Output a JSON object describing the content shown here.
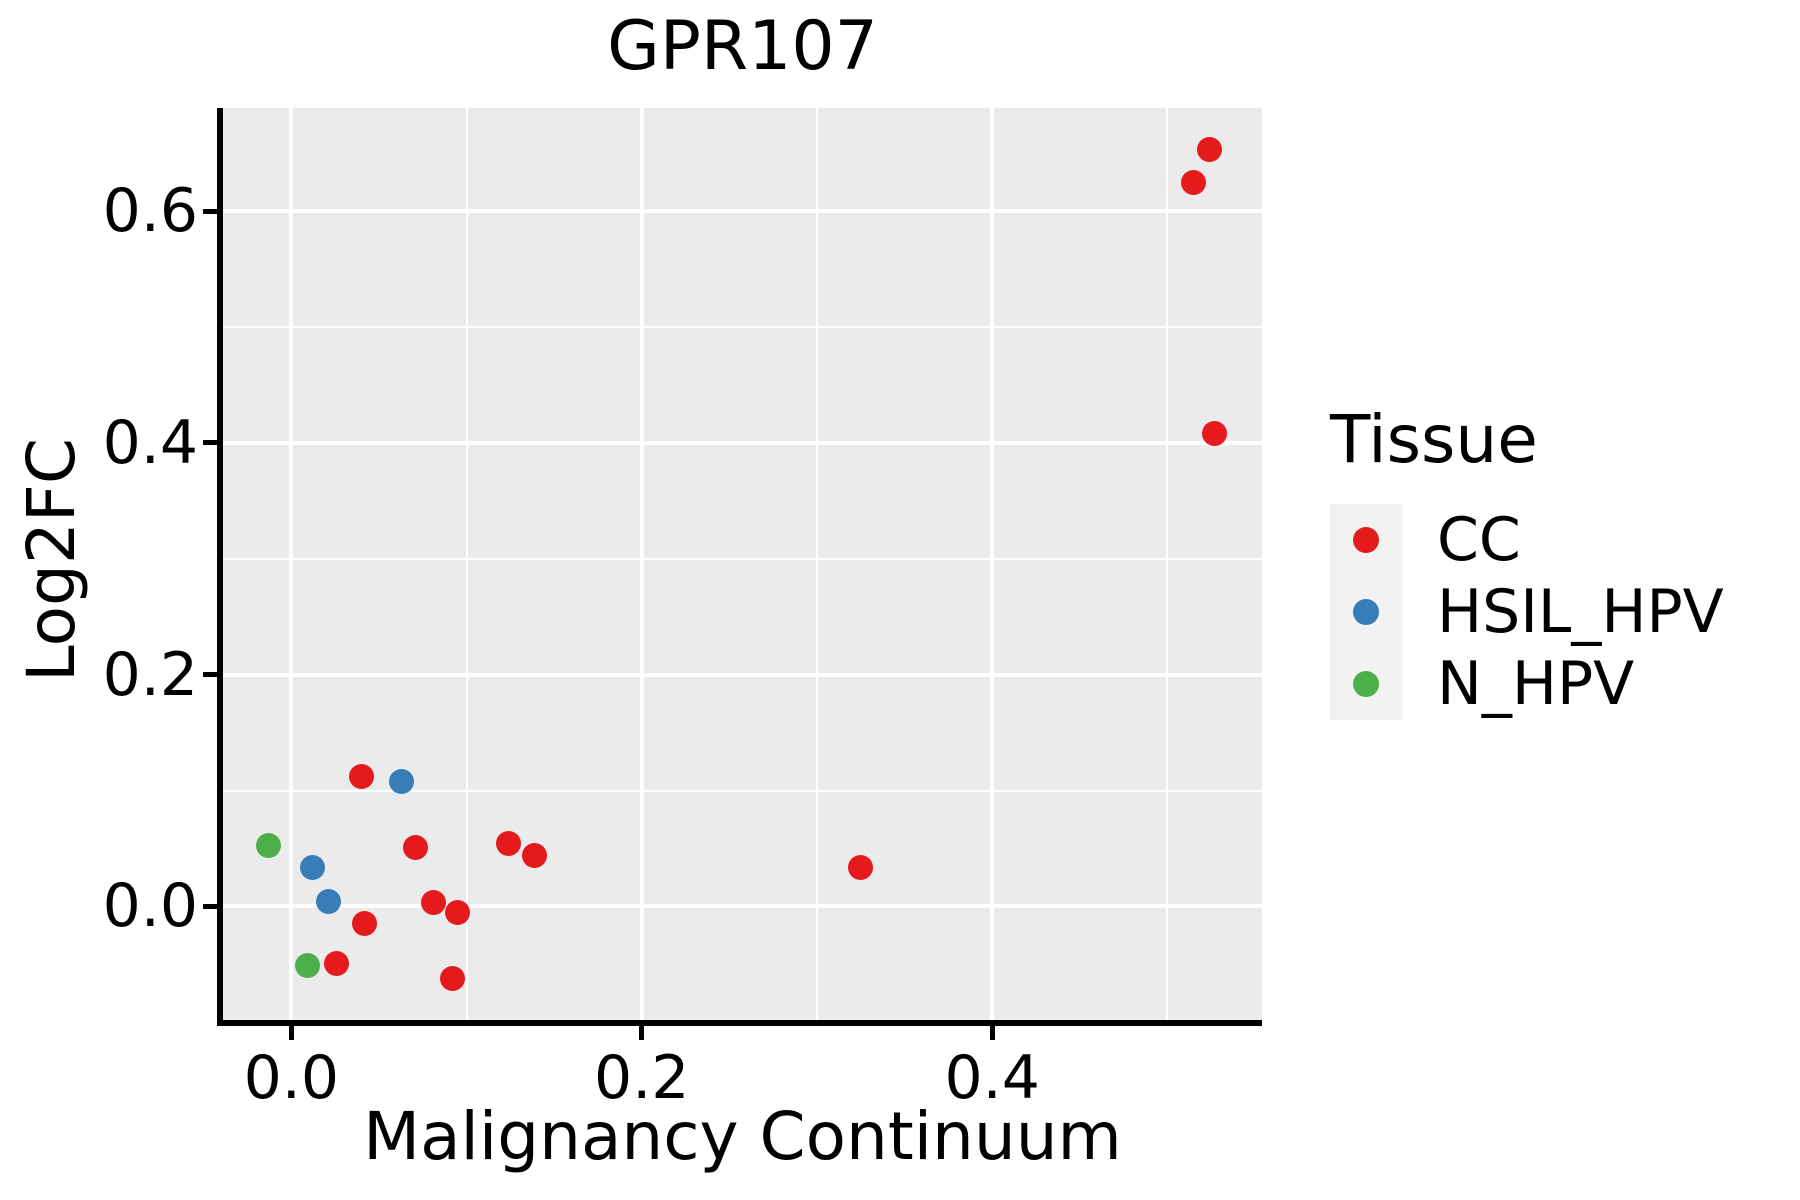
{
  "figure": {
    "title": "GPR107",
    "x_axis_label": "Malignancy Continuum",
    "y_axis_label": "Log2FC"
  },
  "legend": {
    "title": "Tissue",
    "items": [
      {
        "label": "CC",
        "color": "#E41A1C"
      },
      {
        "label": "HSIL_HPV",
        "color": "#377EB8"
      },
      {
        "label": "N_HPV",
        "color": "#4DAF4A"
      }
    ]
  },
  "colors": {
    "panel_background": "#EBEBEB",
    "gridline": "#FFFFFF",
    "axis_line": "#000000",
    "text": "#000000",
    "legend_key_background": "#F2F2F2"
  },
  "chart_data": {
    "type": "scatter",
    "title": "GPR107",
    "xlabel": "Malignancy Continuum",
    "ylabel": "Log2FC",
    "xlim": [
      -0.039,
      0.554
    ],
    "ylim": [
      -0.098,
      0.689
    ],
    "x_ticks": {
      "values": [
        0.0,
        0.2,
        0.4
      ],
      "labels": [
        "0.0",
        "0.2",
        "0.4"
      ]
    },
    "y_ticks": {
      "values": [
        0.0,
        0.2,
        0.4,
        0.6
      ],
      "labels": [
        "0.0",
        "0.2",
        "0.4",
        "0.6"
      ]
    },
    "x_minor_ticks": [
      0.1,
      0.3,
      0.5
    ],
    "y_minor_ticks": [
      0.1,
      0.3,
      0.5
    ],
    "grid": "white major+minor gridlines on gray panel",
    "legend_position": "right",
    "legend_title": "Tissue",
    "series": [
      {
        "name": "CC",
        "color": "#E41A1C",
        "points": [
          [
            0.524,
            0.653
          ],
          [
            0.515,
            0.625
          ],
          [
            0.527,
            0.408
          ],
          [
            0.04,
            0.112
          ],
          [
            0.071,
            0.051
          ],
          [
            0.124,
            0.054
          ],
          [
            0.139,
            0.044
          ],
          [
            0.081,
            0.003
          ],
          [
            0.095,
            -0.005
          ],
          [
            0.042,
            -0.015
          ],
          [
            0.026,
            -0.049
          ],
          [
            0.092,
            -0.062
          ],
          [
            0.325,
            0.034
          ]
        ]
      },
      {
        "name": "HSIL_HPV",
        "color": "#377EB8",
        "points": [
          [
            0.063,
            0.108
          ],
          [
            0.012,
            0.034
          ],
          [
            0.021,
            0.004
          ]
        ]
      },
      {
        "name": "N_HPV",
        "color": "#4DAF4A",
        "points": [
          [
            -0.013,
            0.053
          ],
          [
            0.009,
            -0.051
          ]
        ]
      }
    ]
  }
}
